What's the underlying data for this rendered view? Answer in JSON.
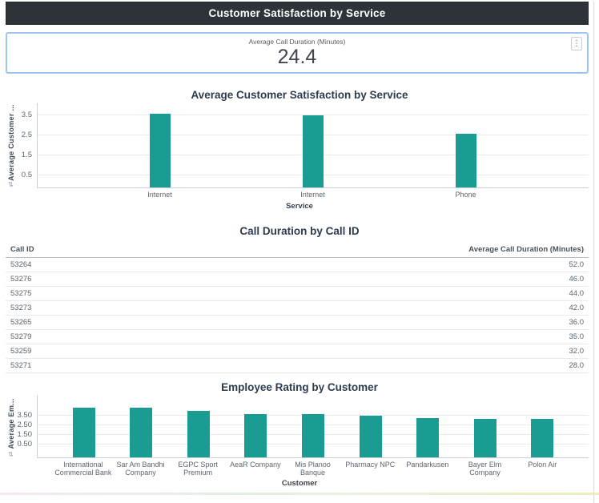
{
  "header": {
    "title": "Customer Satisfaction by Service"
  },
  "kpi_card": {
    "label": "Average Call Duration (Minutes)",
    "value": "24.4"
  },
  "icons": {
    "kebab": "⋮",
    "sort": "⇅"
  },
  "colors": {
    "bar_teal": "#1a9c92",
    "header_bg": "#2d3338",
    "card_border": "#9cc6ef"
  },
  "chart_data": [
    {
      "type": "bar",
      "title": "Average Customer Satisfaction by Service",
      "xlabel": "Service",
      "ylabel": "Average Customer ...",
      "categories": [
        "Internet",
        "Internet",
        "Phone"
      ],
      "values": [
        3.6,
        3.5,
        2.6
      ],
      "yticks": [
        "3.5",
        "2.5",
        "1.5",
        "0.5"
      ],
      "ylim": [
        0,
        4.2
      ],
      "grid": true,
      "legend": "none",
      "bar_color": "#1a9c92"
    },
    {
      "type": "table",
      "title": "Call Duration by Call ID",
      "columns": [
        "Call ID",
        "Average Call Duration (Minutes)"
      ],
      "rows": [
        [
          "53264",
          "52.0"
        ],
        [
          "53276",
          "46.0"
        ],
        [
          "53275",
          "44.0"
        ],
        [
          "53273",
          "42.0"
        ],
        [
          "53265",
          "36.0"
        ],
        [
          "53279",
          "35.0"
        ],
        [
          "53259",
          "32.0"
        ],
        [
          "53271",
          "28.0"
        ]
      ]
    },
    {
      "type": "bar",
      "title": "Employee Rating by Customer",
      "xlabel": "Customer",
      "ylabel": "Average Em...",
      "categories": [
        "International Commercial Bank",
        "Sar Am Bandhi Company",
        "EGPC Sport Premium",
        "AeaR Company",
        "Mis Planoo Banque",
        "Pharmacy NPC",
        "Pandarkusen",
        "Bayer Elm Company",
        "Polon Air"
      ],
      "values": [
        4.4,
        4.4,
        4.0,
        3.7,
        3.7,
        3.55,
        3.3,
        3.2,
        3.2
      ],
      "yticks": [
        "3.50",
        "2.50",
        "1.50",
        "0.50"
      ],
      "ylim": [
        0,
        4.7
      ],
      "grid": true,
      "legend": "none",
      "bar_color": "#1a9c92"
    }
  ]
}
